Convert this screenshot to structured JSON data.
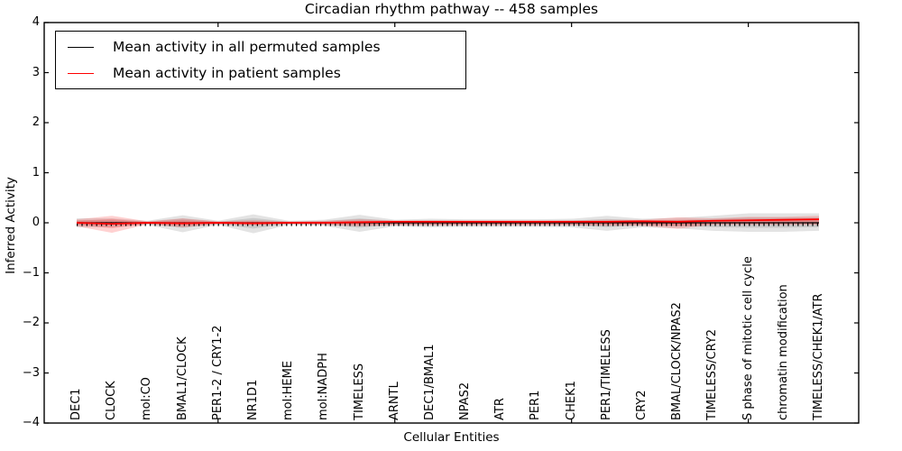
{
  "title": "Circadian rhythm pathway -- 458 samples",
  "axes": {
    "ylabel": "Inferred Activity",
    "xlabel": "Cellular Entities",
    "ytick_labels": [
      "4",
      "3",
      "2",
      "1",
      "0",
      "−1",
      "−2",
      "−3",
      "−4"
    ],
    "ytick_values": [
      4,
      3,
      2,
      1,
      0,
      -1,
      -2,
      -3,
      -4
    ]
  },
  "legend": {
    "items": [
      {
        "label": "Mean activity in all permuted samples",
        "color": "#000000"
      },
      {
        "label": "Mean activity in patient samples",
        "color": "#ff0000"
      }
    ]
  },
  "chart_data": {
    "type": "line",
    "title": "Circadian rhythm pathway -- 458 samples",
    "xlabel": "Cellular Entities",
    "ylabel": "Inferred Activity",
    "ylim": [
      -4,
      4
    ],
    "grid": false,
    "legend_position": "upper left",
    "x_major_ticks": [
      5,
      10,
      15,
      20
    ],
    "categories": [
      "DEC1",
      "CLOCK",
      "mol:CO",
      "BMAL1/CLOCK",
      "PER1-2 / CRY1-2",
      "NR1D1",
      "mol:HEME",
      "mol:NADPH",
      "TIMELESS",
      "ARNTL",
      "DEC1/BMAL1",
      "NPAS2",
      "ATR",
      "PER1",
      "CHEK1",
      "PER1/TIMELESS",
      "CRY2",
      "BMAL/CLOCK/NPAS2",
      "TIMELESS/CRY2",
      "S phase of mitotic cell cycle",
      "chromatin modification",
      "TIMELESS/CHEK1/ATR"
    ],
    "series": [
      {
        "name": "Mean activity in all permuted samples",
        "color": "#000000",
        "values": [
          0,
          0,
          0,
          0,
          0,
          0,
          0,
          0,
          0,
          0,
          0,
          0,
          0,
          0,
          0,
          0,
          0,
          0,
          0,
          0,
          0,
          0
        ]
      },
      {
        "name": "Mean activity in patient samples",
        "color": "#ff0000",
        "values": [
          0,
          -0.02,
          0,
          -0.01,
          0,
          -0.01,
          0,
          0,
          0.01,
          0.02,
          0.02,
          0.02,
          0.02,
          0.02,
          0.02,
          0.02,
          0.03,
          0.02,
          0.04,
          0.05,
          0.06,
          0.07
        ]
      }
    ],
    "bands": [
      {
        "name": "permuted-samples-band",
        "color": "#000000",
        "opacity": 0.11,
        "upper": [
          0.09,
          0.09,
          0.04,
          0.15,
          0.04,
          0.17,
          0.04,
          0.06,
          0.16,
          0.06,
          0.08,
          0.07,
          0.07,
          0.07,
          0.08,
          0.14,
          0.08,
          0.1,
          0.14,
          0.19,
          0.19,
          0.19
        ],
        "lower": [
          -0.09,
          -0.09,
          -0.04,
          -0.19,
          -0.04,
          -0.21,
          -0.04,
          -0.06,
          -0.18,
          -0.07,
          -0.09,
          -0.08,
          -0.08,
          -0.08,
          -0.09,
          -0.16,
          -0.09,
          -0.11,
          -0.16,
          -0.18,
          -0.18,
          -0.16
        ]
      },
      {
        "name": "patient-samples-band",
        "color": "#ff0000",
        "opacity": 0.18,
        "upper": [
          0.07,
          0.14,
          0.03,
          0.09,
          0.03,
          0.05,
          0.03,
          0.04,
          0.07,
          0.05,
          0.05,
          0.05,
          0.05,
          0.05,
          0.05,
          0.06,
          0.06,
          0.11,
          0.09,
          0.12,
          0.12,
          0.14
        ],
        "lower": [
          -0.07,
          -0.2,
          -0.03,
          -0.09,
          -0.03,
          -0.05,
          -0.03,
          -0.04,
          -0.07,
          -0.05,
          -0.05,
          -0.05,
          -0.05,
          -0.05,
          -0.05,
          -0.06,
          -0.06,
          -0.12,
          -0.04,
          -0.04,
          -0.04,
          -0.04
        ]
      }
    ]
  },
  "colors": {
    "spine": "#000000",
    "background": "#ffffff",
    "permuted_line": "#000000",
    "patient_line": "#ff0000"
  }
}
